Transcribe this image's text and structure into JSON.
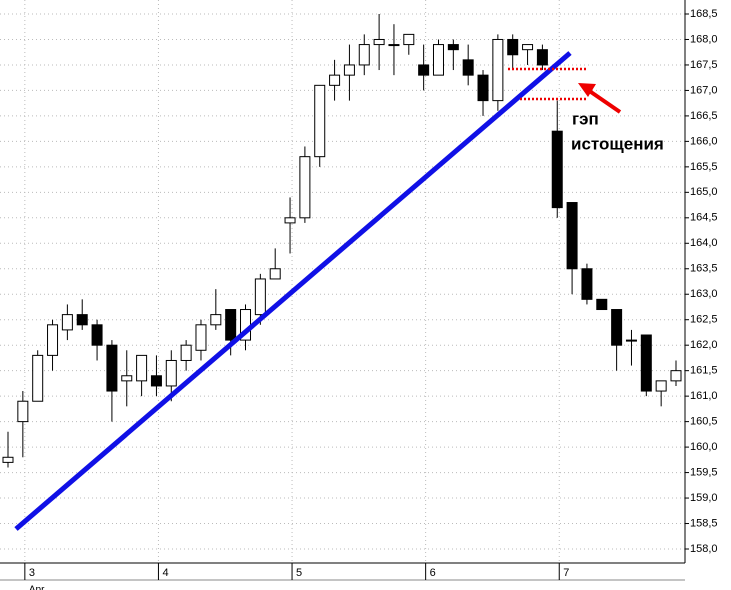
{
  "chart_data": {
    "type": "candlestick",
    "categories": [
      null,
      "3",
      null,
      null,
      null,
      null,
      null,
      null,
      null,
      null,
      "4",
      null,
      null,
      null,
      null,
      null,
      null,
      null,
      null,
      "5",
      null,
      null,
      null,
      null,
      null,
      null,
      null,
      null,
      "6",
      null,
      null,
      null,
      null,
      null,
      null,
      null,
      null,
      "7",
      null,
      null,
      null,
      null,
      null,
      null,
      null,
      null
    ],
    "x_sublabel": "Apr",
    "open": [
      159.7,
      160.5,
      160.9,
      161.8,
      162.3,
      162.6,
      162.4,
      162.0,
      161.3,
      161.3,
      161.4,
      161.2,
      161.7,
      161.9,
      162.4,
      162.7,
      162.1,
      162.6,
      163.3,
      164.4,
      164.5,
      165.7,
      167.1,
      167.3,
      167.5,
      167.9,
      167.9,
      167.9,
      167.5,
      167.3,
      167.9,
      167.6,
      167.3,
      166.8,
      168.0,
      167.8,
      167.8,
      166.2,
      164.8,
      163.5,
      162.9,
      162.7,
      162.1,
      162.2,
      161.1,
      161.3
    ],
    "high": [
      160.3,
      161.1,
      161.9,
      162.5,
      162.8,
      162.9,
      162.5,
      162.1,
      161.9,
      161.8,
      161.8,
      161.9,
      162.1,
      162.5,
      163.1,
      162.7,
      162.8,
      163.4,
      163.9,
      164.9,
      165.9,
      167.1,
      167.6,
      167.9,
      168.1,
      168.5,
      168.3,
      168.1,
      167.9,
      168.0,
      168.0,
      167.9,
      167.4,
      168.1,
      168.1,
      167.9,
      167.9,
      166.8,
      164.8,
      163.6,
      162.9,
      162.7,
      162.3,
      162.2,
      161.3,
      161.7
    ],
    "low": [
      159.6,
      159.8,
      160.9,
      161.5,
      162.1,
      162.3,
      161.7,
      160.5,
      160.8,
      161.0,
      161.0,
      160.9,
      161.5,
      161.7,
      162.3,
      161.8,
      161.9,
      162.4,
      163.3,
      163.8,
      164.4,
      165.5,
      166.8,
      166.8,
      167.3,
      167.4,
      167.3,
      167.7,
      167.0,
      167.3,
      167.4,
      167.1,
      166.5,
      166.6,
      167.4,
      167.5,
      167.4,
      164.5,
      163.0,
      162.8,
      162.7,
      161.5,
      161.6,
      161.0,
      160.8,
      161.2
    ],
    "close": [
      159.8,
      160.9,
      161.8,
      162.4,
      162.6,
      162.4,
      162.0,
      161.1,
      161.4,
      161.8,
      161.2,
      161.7,
      162.0,
      162.4,
      162.6,
      162.1,
      162.7,
      163.3,
      163.5,
      164.5,
      165.7,
      167.1,
      167.3,
      167.5,
      167.9,
      168.0,
      167.9,
      168.1,
      167.3,
      167.9,
      167.8,
      167.3,
      166.8,
      168.0,
      167.7,
      167.9,
      167.5,
      164.7,
      163.5,
      162.9,
      162.7,
      162.0,
      162.1,
      161.1,
      161.3,
      161.5
    ],
    "up_color": "#ffffff",
    "down_color": "#000000",
    "ylim": [
      157.8,
      168.75
    ],
    "yticks": [
      {
        "value": 158.0,
        "label": "158,0"
      },
      {
        "value": 158.5,
        "label": "158,5"
      },
      {
        "value": 159.0,
        "label": "159,0"
      },
      {
        "value": 159.5,
        "label": "159,5"
      },
      {
        "value": 160.0,
        "label": "160,0"
      },
      {
        "value": 160.5,
        "label": "160,5"
      },
      {
        "value": 161.0,
        "label": "161,0"
      },
      {
        "value": 161.5,
        "label": "161,5"
      },
      {
        "value": 162.0,
        "label": "162,0"
      },
      {
        "value": 162.5,
        "label": "162,5"
      },
      {
        "value": 163.0,
        "label": "163,0"
      },
      {
        "value": 163.5,
        "label": "163,5"
      },
      {
        "value": 164.0,
        "label": "164,0"
      },
      {
        "value": 164.5,
        "label": "164,5"
      },
      {
        "value": 165.0,
        "label": "165,0"
      },
      {
        "value": 165.5,
        "label": "165,5"
      },
      {
        "value": 166.0,
        "label": "166,0"
      },
      {
        "value": 166.5,
        "label": "166,5"
      },
      {
        "value": 167.0,
        "label": "167,0"
      },
      {
        "value": 167.5,
        "label": "167,5"
      },
      {
        "value": 168.0,
        "label": "168,0"
      },
      {
        "value": 168.5,
        "label": "168,5"
      }
    ],
    "grid": true,
    "annotation": [
      "гэп",
      "истощения"
    ]
  }
}
